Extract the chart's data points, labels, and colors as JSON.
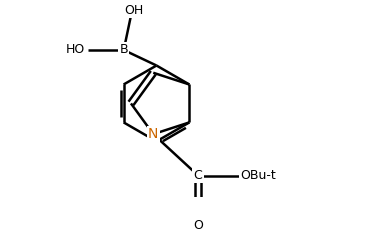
{
  "background_color": "#ffffff",
  "bond_color": "#000000",
  "N_color": "#cc6600",
  "bond_lw": 1.8,
  "figsize": [
    3.69,
    2.29
  ],
  "dpi": 100,
  "fontsize": 9,
  "labels": {
    "B": "B",
    "OH": "OH",
    "HO": "HO",
    "N": "N",
    "C": "C",
    "O": "O",
    "OBut": "OBu-t"
  }
}
